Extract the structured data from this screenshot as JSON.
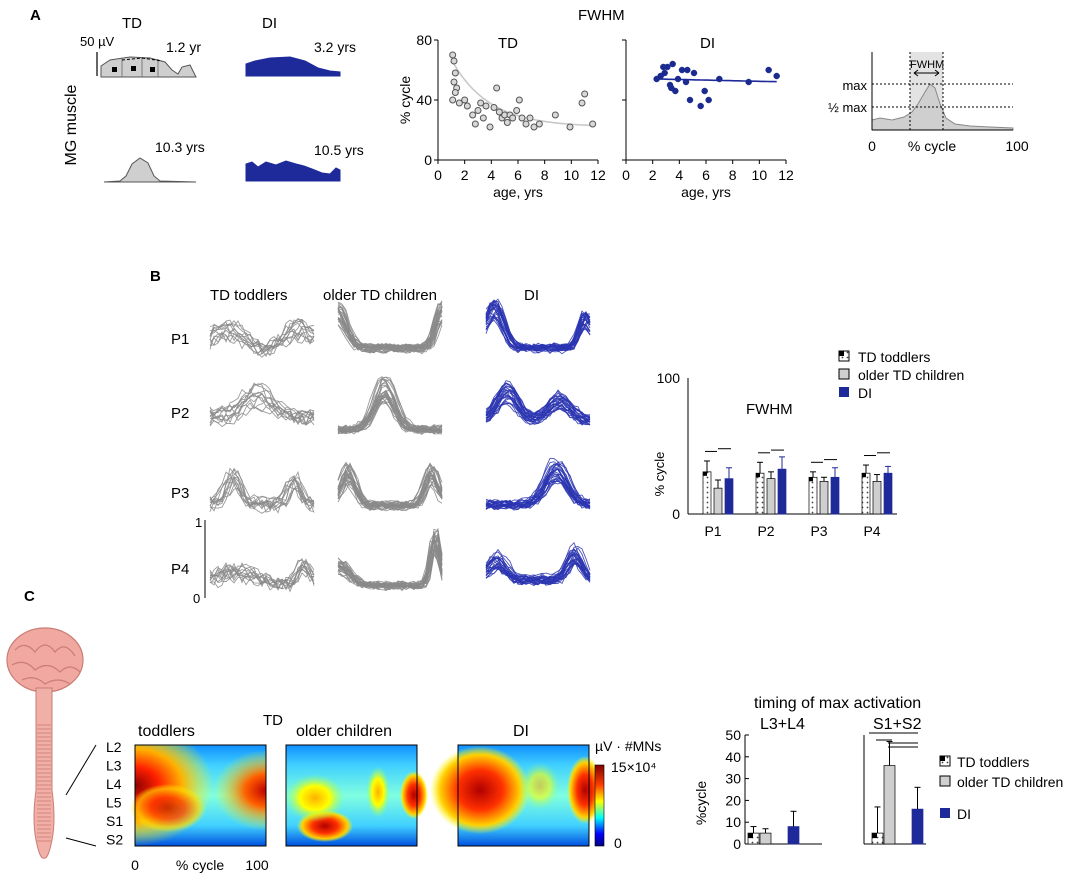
{
  "panels": {
    "a": "A",
    "b": "B",
    "c": "C"
  },
  "colors": {
    "td_fill": "#cfcfcf",
    "td_stroke": "#555555",
    "di": "#1f2a9a",
    "di_dot": "#1a2a8f",
    "grey_trace": "#8a8a8a",
    "blue_trace": "#2b35b0",
    "fwhm_band": "#e3e3e3"
  },
  "panel_a": {
    "col_td": "TD",
    "col_di": "DI",
    "muscle_label": "MG muscle",
    "scale_label": "50 µV",
    "age_td_young": "1.2 yr",
    "age_di_young": "3.2 yrs",
    "age_td_old": "10.3 yrs",
    "age_di_old": "10.5 yrs"
  },
  "panel_b": {
    "group_labels": [
      "TD toddlers",
      "older TD children",
      "DI"
    ],
    "row_labels": [
      "P1",
      "P2",
      "P3",
      "P4"
    ],
    "scale_top": "1",
    "scale_bottom": "0"
  },
  "panel_c": {
    "td_label": "TD",
    "heatmap_titles": [
      "toddlers",
      "older children",
      "DI"
    ],
    "segments": [
      "L2",
      "L3",
      "L4",
      "L5",
      "S1",
      "S2"
    ],
    "x_label": "% cycle",
    "x_ticks": [
      "0",
      "100"
    ],
    "cbar_unit": "µV · #MNs",
    "cbar_max": "15×10⁴",
    "cbar_min": "0",
    "timing_title": "timing of max activation",
    "subtitle_l": "L3+L4",
    "subtitle_s": "S1+S2"
  },
  "chart_data": [
    {
      "id": "fwhm-td",
      "type": "scatter",
      "title": "FWHM",
      "subtitle": "TD",
      "xlabel": "age, yrs",
      "ylabel": "% cycle",
      "xlim": [
        0,
        12
      ],
      "ylim": [
        0,
        80
      ],
      "xticks": [
        0,
        2,
        4,
        6,
        8,
        10,
        12
      ],
      "yticks": [
        0,
        40,
        80
      ],
      "x": [
        1.1,
        1.2,
        1.3,
        1.2,
        1.4,
        1.1,
        1.6,
        1.3,
        2.0,
        2.2,
        2.6,
        2.8,
        3.0,
        3.2,
        3.4,
        3.6,
        3.9,
        4.2,
        4.4,
        4.6,
        4.8,
        5.0,
        5.2,
        5.4,
        5.6,
        5.9,
        6.1,
        6.3,
        6.6,
        6.9,
        7.2,
        7.6,
        8.8,
        9.9,
        10.8,
        11.0,
        11.6
      ],
      "y": [
        70,
        66,
        58,
        52,
        48,
        40,
        38,
        45,
        40,
        36,
        30,
        24,
        33,
        38,
        28,
        36,
        22,
        35,
        48,
        32,
        28,
        30,
        25,
        30,
        28,
        33,
        40,
        28,
        24,
        28,
        22,
        24,
        30,
        22,
        38,
        44,
        24
      ],
      "fit_trend": "decreasing exponential"
    },
    {
      "id": "fwhm-di",
      "type": "scatter",
      "subtitle": "DI",
      "xlabel": "age, yrs",
      "xlim": [
        0,
        12
      ],
      "ylim": [
        0,
        80
      ],
      "xticks": [
        0,
        2,
        4,
        6,
        8,
        10,
        12
      ],
      "x": [
        2.3,
        2.6,
        2.9,
        3.1,
        3.3,
        3.5,
        3.7,
        3.9,
        4.2,
        4.5,
        4.8,
        5.1,
        5.6,
        5.9,
        6.2,
        7.0,
        9.2,
        10.7,
        11.3,
        2.8,
        3.4,
        4.6
      ],
      "y": [
        54,
        56,
        58,
        62,
        50,
        64,
        46,
        54,
        60,
        52,
        40,
        58,
        36,
        46,
        40,
        54,
        52,
        60,
        56,
        62,
        48,
        60
      ],
      "fit_trend": "flat"
    },
    {
      "id": "fwhm-schematic",
      "type": "line",
      "ylabels": [
        "max",
        "½ max"
      ],
      "band_label": "FWHM",
      "xlabel": "% cycle",
      "xticks": [
        0,
        100
      ]
    },
    {
      "id": "fwhm-bars",
      "type": "bar",
      "title": "FWHM",
      "ylabel": "% cycle",
      "ylim": [
        0,
        100
      ],
      "yticks": [
        0,
        100
      ],
      "categories": [
        "P1",
        "P2",
        "P3",
        "P4"
      ],
      "series": [
        {
          "name": "TD toddlers",
          "values": [
            31,
            30,
            27,
            30
          ],
          "errors": [
            8,
            8,
            4,
            6
          ]
        },
        {
          "name": "older TD children",
          "values": [
            19,
            26,
            24,
            24
          ],
          "errors": [
            6,
            5,
            3,
            5
          ]
        },
        {
          "name": "DI",
          "values": [
            26,
            33,
            27,
            30
          ],
          "errors": [
            8,
            9,
            7,
            5
          ]
        }
      ]
    },
    {
      "id": "timing-max",
      "type": "bar",
      "title": "timing of max activation",
      "ylabel": "%cycle",
      "ylim": [
        0,
        50
      ],
      "yticks": [
        0,
        10,
        20,
        30,
        40,
        50
      ],
      "categories": [
        "L3+L4",
        "S1+S2"
      ],
      "series": [
        {
          "name": "TD toddlers",
          "values": [
            5,
            5
          ],
          "errors": [
            3,
            12
          ]
        },
        {
          "name": "older TD children",
          "values": [
            5,
            36
          ],
          "errors": [
            2,
            11
          ]
        },
        {
          "name": "DI",
          "values": [
            8,
            16
          ],
          "errors": [
            7,
            10
          ]
        }
      ]
    },
    {
      "id": "spinal-maps",
      "type": "heatmap",
      "rows": [
        "L2",
        "L3",
        "L4",
        "L5",
        "S1",
        "S2"
      ],
      "xlabel": "% cycle",
      "xlim": [
        0,
        100
      ],
      "colorbar": {
        "min": 0,
        "max": 150000,
        "unit": "µV · #MNs"
      }
    }
  ]
}
